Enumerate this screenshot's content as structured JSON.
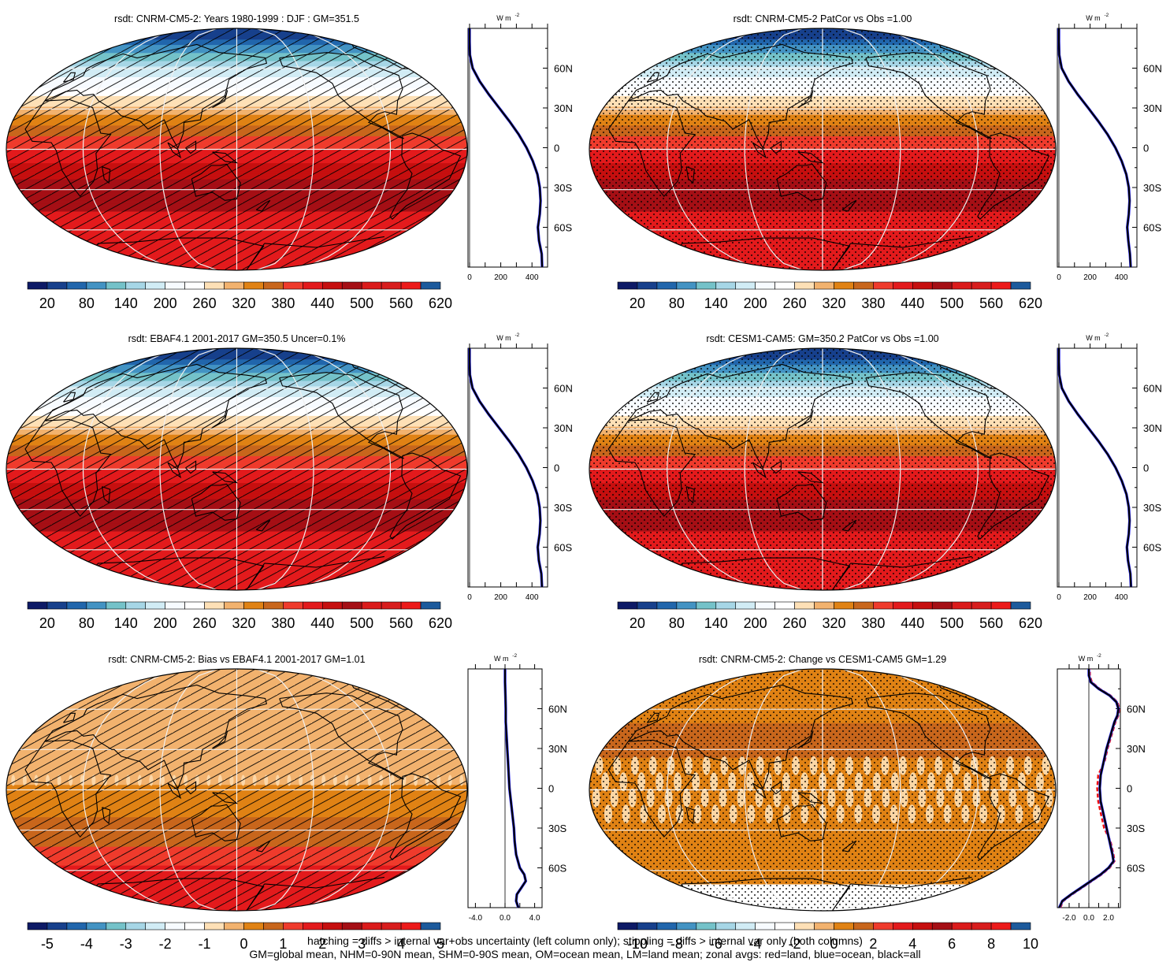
{
  "palette": [
    "#0d1a66",
    "#17408c",
    "#2166ac",
    "#4393c3",
    "#74c2c9",
    "#a6d6e6",
    "#d1ecf5",
    "#f7fbff",
    "#ffffff",
    "#fee0b6",
    "#f2b26e",
    "#e08214",
    "#c8661c",
    "#ef3b2c",
    "#e31a1c",
    "#c60f0f",
    "#a50f15",
    "#db1b1b",
    "#d81d1d",
    "#ec1a1a",
    "#1c5a9c"
  ],
  "ocean_color": "#2b2bff",
  "panels": [
    {
      "id": "p1",
      "title": "rsdt: CNRM-CM5-2: Years 1980-1999 : DJF : GM=351.5",
      "kind": "clim",
      "overlay": "hatch",
      "colorbar_labels": [
        "20",
        "80",
        "140",
        "200",
        "260",
        "320",
        "380",
        "440",
        "500",
        "560",
        "620"
      ],
      "profile": {
        "unit": "W m",
        "unit_sup": "-2",
        "xticks": [
          "0",
          "200",
          "400"
        ],
        "xlim": [
          -10,
          500
        ],
        "lat": [
          -90,
          -80,
          -70,
          -60,
          -50,
          -40,
          -30,
          -20,
          -10,
          0,
          10,
          20,
          30,
          40,
          50,
          60,
          70,
          80,
          90
        ],
        "values": [
          465,
          462,
          445,
          438,
          450,
          455,
          450,
          435,
          405,
          365,
          315,
          255,
          190,
          125,
          65,
          20,
          2,
          0,
          0
        ]
      }
    },
    {
      "id": "p2",
      "title": "rsdt: CNRM-CM5-2 PatCor vs Obs =1.00",
      "kind": "clim",
      "overlay": "stipple",
      "colorbar_labels": [
        "20",
        "80",
        "140",
        "200",
        "260",
        "320",
        "380",
        "440",
        "500",
        "560",
        "620"
      ],
      "profile": {
        "unit": "W m",
        "unit_sup": "-2",
        "xticks": [
          "0",
          "200",
          "400"
        ],
        "xlim": [
          -10,
          500
        ],
        "lat": [
          -90,
          -80,
          -70,
          -60,
          -50,
          -40,
          -30,
          -20,
          -10,
          0,
          10,
          20,
          30,
          40,
          50,
          60,
          70,
          80,
          90
        ],
        "values": [
          460,
          455,
          445,
          438,
          448,
          453,
          448,
          432,
          402,
          362,
          312,
          252,
          188,
          122,
          62,
          18,
          2,
          0,
          0
        ]
      }
    },
    {
      "id": "p3",
      "title": "rsdt: EBAF4.1 2001-2017 GM=350.5 Uncer=0.1%",
      "kind": "clim",
      "overlay": "hatch",
      "colorbar_labels": [
        "20",
        "80",
        "140",
        "200",
        "260",
        "320",
        "380",
        "440",
        "500",
        "560",
        "620"
      ],
      "profile": {
        "unit": "W m",
        "unit_sup": "-2",
        "xticks": [
          "0",
          "200",
          "400"
        ],
        "xlim": [
          -10,
          500
        ],
        "lat": [
          -90,
          -80,
          -70,
          -60,
          -50,
          -40,
          -30,
          -20,
          -10,
          0,
          10,
          20,
          30,
          40,
          50,
          60,
          70,
          80,
          90
        ],
        "values": [
          464,
          460,
          444,
          437,
          449,
          454,
          449,
          434,
          404,
          364,
          314,
          254,
          189,
          124,
          64,
          19,
          2,
          0,
          0
        ]
      }
    },
    {
      "id": "p4",
      "title": "rsdt: CESM1-CAM5: GM=350.2 PatCor vs Obs =1.00",
      "kind": "clim",
      "overlay": "stipple",
      "colorbar_labels": [
        "20",
        "80",
        "140",
        "200",
        "260",
        "320",
        "380",
        "440",
        "500",
        "560",
        "620"
      ],
      "profile": {
        "unit": "W m",
        "unit_sup": "-2",
        "xticks": [
          "0",
          "200",
          "400"
        ],
        "xlim": [
          -10,
          500
        ],
        "lat": [
          -90,
          -80,
          -70,
          -60,
          -50,
          -40,
          -30,
          -20,
          -10,
          0,
          10,
          20,
          30,
          40,
          50,
          60,
          70,
          80,
          90
        ],
        "values": [
          462,
          458,
          443,
          436,
          448,
          453,
          448,
          433,
          403,
          363,
          313,
          253,
          188,
          123,
          63,
          19,
          2,
          0,
          0
        ]
      }
    },
    {
      "id": "p5",
      "title": "rsdt: CNRM-CM5-2: Bias vs EBAF4.1 2001-2017 GM=1.01",
      "kind": "bias",
      "overlay": "hatch",
      "colorbar_labels": [
        "-5",
        "-4",
        "-3",
        "-2",
        "-1",
        "0",
        "1",
        "2",
        "3",
        "4",
        "5"
      ],
      "profile": {
        "unit": "W m",
        "unit_sup": "-2",
        "xticks": [
          "-4.0",
          "0.0",
          "4.0"
        ],
        "xlim": [
          -5,
          5
        ],
        "lat": [
          -90,
          -85,
          -80,
          -75,
          -70,
          -65,
          -60,
          -50,
          -40,
          -30,
          -20,
          -10,
          0,
          10,
          20,
          30,
          40,
          50,
          60,
          70,
          80,
          90
        ],
        "values": [
          1.8,
          1.5,
          1.6,
          2.2,
          2.8,
          2.6,
          2.0,
          1.5,
          1.3,
          1.2,
          1.0,
          0.8,
          0.6,
          0.5,
          0.4,
          0.3,
          0.2,
          0.1,
          0.1,
          0.05,
          0.0,
          0.0
        ]
      }
    },
    {
      "id": "p6",
      "title": "rsdt: CNRM-CM5-2: Change vs CESM1-CAM5 GM=1.29",
      "kind": "change",
      "overlay": "stipple",
      "colorbar_labels": [
        "-10",
        "-8",
        "-6",
        "-4",
        "-2",
        "0",
        "2",
        "4",
        "6",
        "8",
        "10"
      ],
      "profile": {
        "unit": "W m",
        "unit_sup": "-2",
        "xticks": [
          "-2.0",
          "0.0",
          "2.0"
        ],
        "xlim": [
          -3.2,
          3.2
        ],
        "lat": [
          -90,
          -85,
          -80,
          -75,
          -70,
          -65,
          -60,
          -55,
          -50,
          -40,
          -30,
          -20,
          -10,
          0,
          10,
          20,
          30,
          40,
          50,
          55,
          60,
          65,
          70,
          75,
          80,
          85,
          90
        ],
        "values": [
          -3.0,
          -2.7,
          -1.8,
          -0.8,
          0.2,
          1.2,
          2.0,
          2.5,
          2.4,
          2.1,
          1.8,
          1.5,
          1.2,
          1.1,
          1.2,
          1.5,
          1.8,
          2.2,
          2.6,
          2.9,
          3.0,
          2.8,
          2.1,
          1.0,
          0.2,
          0.0,
          0.0
        ]
      }
    }
  ],
  "footer": {
    "line1": "hatching = diffs > internal var+obs uncertainty (left column only); stippling = diffs > internal var only (both columns)",
    "line2": "GM=global mean, NHM=0-90N mean, SHM=0-90S mean, OM=ocean mean, LM=land mean; zonal avgs: red=land, blue=ocean, black=all"
  }
}
